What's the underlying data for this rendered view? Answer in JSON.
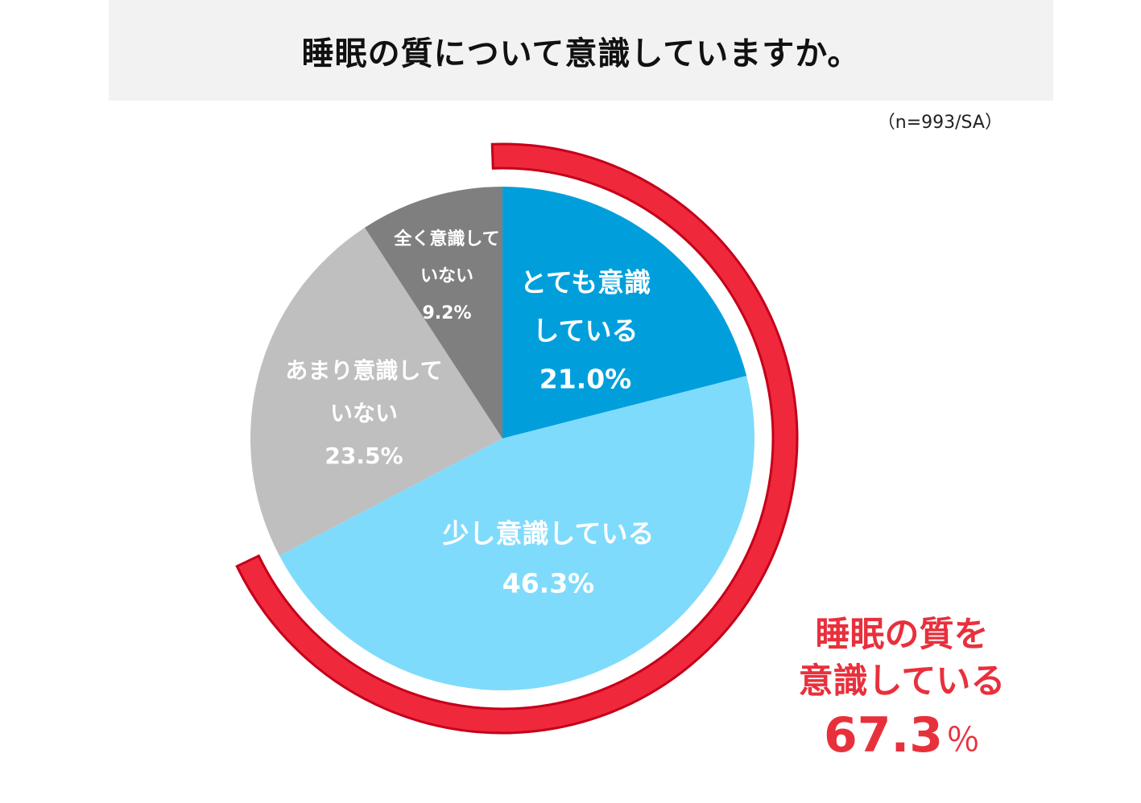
{
  "title": "睡眠の質について意識していますか。",
  "note": "（n=993/SA）",
  "colors": {
    "very_conscious": "#009fdc",
    "somewhat_conscious": "#7fdbfc",
    "not_very_conscious": "#bfbfbf",
    "not_at_all": "#7f7f7f",
    "highlight": "#f0283c"
  },
  "chart_data": {
    "type": "pie",
    "slices": [
      {
        "label_lines": [
          "とても意識",
          "している"
        ],
        "value_text": "21.0%",
        "value": 21.0,
        "color": "#009fdc"
      },
      {
        "label_lines": [
          "少し意識している"
        ],
        "value_text": "46.3%",
        "value": 46.3,
        "color": "#7fdbfc"
      },
      {
        "label_lines": [
          "あまり意識して",
          "いない"
        ],
        "value_text": "23.5%",
        "value": 23.5,
        "color": "#bfbfbf"
      },
      {
        "label_lines": [
          "全く意識して",
          "いない"
        ],
        "value_text": "9.2%",
        "value": 9.2,
        "color": "#7f7f7f"
      }
    ],
    "highlight": {
      "lines": [
        "睡眠の質を",
        "意識している"
      ],
      "value": "67.3",
      "unit": "％",
      "total": 67.3
    }
  }
}
